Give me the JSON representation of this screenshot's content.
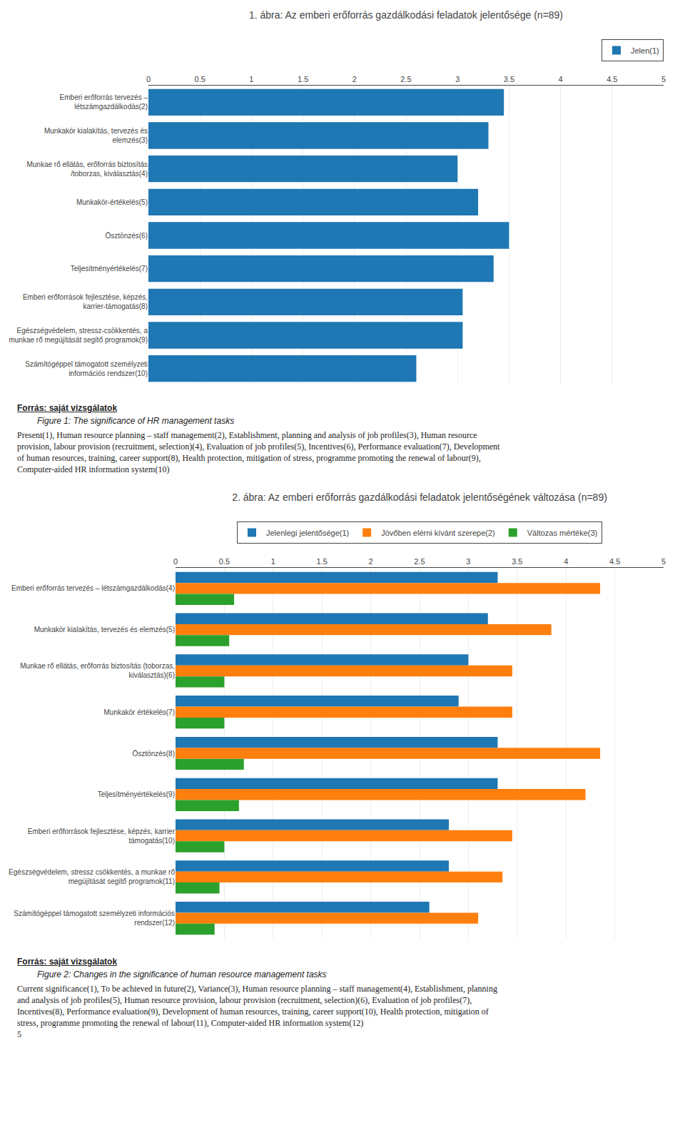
{
  "chart_data": [
    {
      "type": "bar",
      "orientation": "horizontal",
      "title": "1. ábra: Az emberi erőforrás gazdálkodási feladatok jelentősége (n=89)",
      "categories": [
        "Emberi erőforrás tervezés –\nlétszámgazdálkodás(2)",
        "Munkakör kialakítás, tervezés és\nelemzés(3)",
        "Munkae rő ellátás, erőforrás biztosítás\n/toborzas, kiválasztás(4)",
        "Munkakör-értékelés(5)",
        "Ösztönzés(6)",
        "Teljesítményértékelés(7)",
        "Emberi erőforrások fejlesztése, képzés,\nkarrier-támogatás(8)",
        "Egészségvédelem, stressz-csökkentés, a\nmunkae rő megújítását segítő programok(9)",
        "Számítógéppel támogatott személyzeti\ninformációs rendszer(10)"
      ],
      "series": [
        {
          "name": "Jelen(1)",
          "values": [
            3.45,
            3.3,
            3.0,
            3.2,
            3.5,
            3.35,
            3.05,
            3.05,
            2.6
          ]
        }
      ],
      "xlim": [
        0,
        5
      ],
      "xticks": [
        0,
        0.5,
        1,
        1.5,
        2,
        2.5,
        3,
        3.5,
        4,
        4.5,
        5
      ],
      "grid": true,
      "legend": "upper right",
      "annotations": [
        "Forrás: saját vizsgálatok",
        "Figure 1: The significance of HR management tasks",
        "Present(1), Human resource planning – staff management(2), Establishment, planning and analysis of job profiles(3), Human resource",
        "provision, labour provision (recruitment, selection)(4), Evaluation of job profiles(5), Incentives(6), Performance evaluation(7), Development",
        "of human resources, training, career support(8), Health protection, mitigation of stress, programme promoting the renewal of labour(9),",
        "Computer-aided HR information system(10)"
      ]
    },
    {
      "type": "bar",
      "orientation": "horizontal",
      "title": "2. ábra: Az emberi erőforrás gazdálkodási feladatok jelentőségének változása (n=89)",
      "categories": [
        "Emberi erőforrás tervezés – létszámgazdálkodás(4)",
        "Munkakör kialakítás, tervezés és elemzés(5)",
        "Munkae rő ellátás, erőforrás biztosítás (toborzas,\nkiválasztás)(6)",
        "Munkakör értékelés(7)",
        "Ösztönzés(8)",
        "Teljesítményértékelés(9)",
        "Emberi erőforrások fejlesztése, képzés, karrier\ntámogatás(10)",
        "Egészségvédelem, stressz csökkentés, a munkae rő\nmegújítását segítő programok(11)",
        "Számítógéppel támogatott személyzeti információs\nrendszer(12)"
      ],
      "series": [
        {
          "name": "Jelenlegi jelentősége(1)",
          "values": [
            3.3,
            3.2,
            3.0,
            2.9,
            3.3,
            3.3,
            2.8,
            2.8,
            2.6
          ]
        },
        {
          "name": "Jövőben elérni kívánt szerepe(2)",
          "values": [
            4.35,
            3.85,
            3.45,
            3.45,
            4.35,
            4.2,
            3.45,
            3.35,
            3.1
          ]
        },
        {
          "name": "Változas mértéke(3)",
          "values": [
            0.6,
            0.55,
            0.5,
            0.5,
            0.7,
            0.65,
            0.5,
            0.45,
            0.4
          ]
        }
      ],
      "xlim": [
        0,
        5
      ],
      "xticks": [
        0,
        0.5,
        1,
        1.5,
        2,
        2.5,
        3,
        3.5,
        4,
        4.5,
        5
      ],
      "grid": true,
      "legend": "upper center",
      "annotations": [
        "Forrás: saját vizsgálatok",
        "Figure 2: Changes in the significance of human resource management tasks",
        "Current significance(1), To be achieved in future(2), Variance(3), Human resource planning – staff management(4), Establishment, planning",
        "and analysis of job profiles(5), Human resource provision, labour provision (recruitment, selection)(6), Evaluation of job profiles(7),",
        "Incentives(8), Performance evaluation(9), Development of human resources, training, career support(10), Health protection, mitigation of",
        "stress, programme promoting the renewal of labour(11), Computer-aided HR information system(12)",
        "5"
      ]
    }
  ]
}
